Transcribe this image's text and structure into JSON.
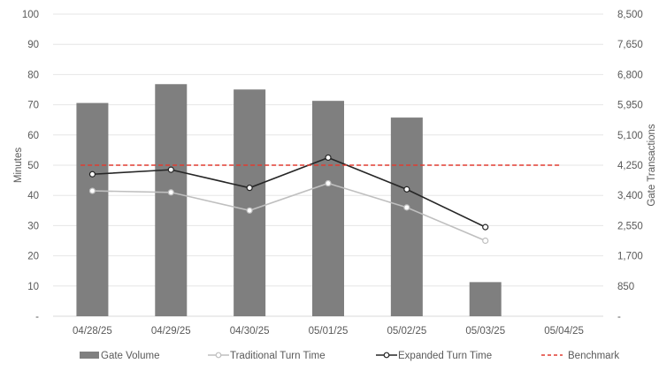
{
  "chart_data": {
    "type": "bar",
    "categories": [
      "04/28/25",
      "04/29/25",
      "04/30/25",
      "05/01/25",
      "05/02/25",
      "05/03/25",
      "05/04/25"
    ],
    "ylabel": "Minutes",
    "y2label": "Gate Transactions",
    "ylim": [
      0,
      100
    ],
    "y2lim": [
      0,
      8500
    ],
    "y_ticks": [
      "-",
      "10",
      "20",
      "30",
      "40",
      "50",
      "60",
      "70",
      "80",
      "90",
      "100"
    ],
    "y2_ticks": [
      "-",
      "850",
      "1,700",
      "2,550",
      "3,400",
      "4,250",
      "5,100",
      "5,950",
      "6,800",
      "7,650",
      "8,500"
    ],
    "grid": true,
    "legend_position": "bottom",
    "series": [
      {
        "name": "Gate Volume",
        "type": "bar",
        "axis": "right",
        "color": "#7f7f7f",
        "values": [
          6000,
          6530,
          6380,
          6060,
          5590,
          960,
          null
        ]
      },
      {
        "name": "Traditional Turn Time",
        "type": "line",
        "axis": "left",
        "color": "#bfbfbf",
        "values": [
          41.5,
          41,
          35,
          44,
          36,
          25,
          null
        ]
      },
      {
        "name": "Expanded Turn Time",
        "type": "line",
        "axis": "left",
        "color": "#262626",
        "values": [
          47,
          48.5,
          42.5,
          52.5,
          42,
          29.5,
          null
        ]
      },
      {
        "name": "Benchmark",
        "type": "line",
        "axis": "left",
        "color": "#e03c31",
        "dashed": true,
        "values": [
          50,
          50,
          50,
          50,
          50,
          50,
          50
        ]
      }
    ]
  }
}
